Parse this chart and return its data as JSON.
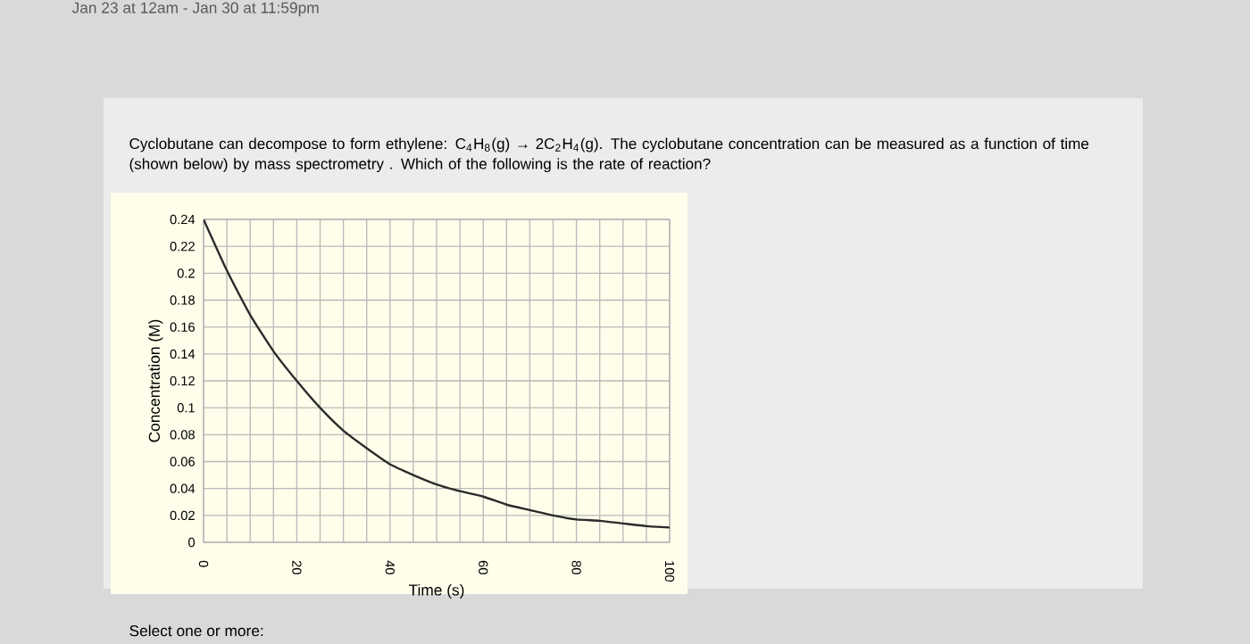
{
  "chart_data": {
    "type": "line",
    "title": "Cyclobutane can decompose to form ethylene: C$_{4}$H$_{8}$(g) → 2C$_{2}$H$_{4}$(g). The cyclobutane concentration can be measured as a function of time (shown below) by mass spectrometry . Which of the following is the rate of reaction?",
    "xlabel": "Time (s)",
    "ylabel": "Concentration (M)",
    "annotations": [
      "Jan 23 at 12am - Jan 30 at 11:59pm",
      "Select one or more:"
    ],
    "x": [
      0,
      5,
      10,
      15,
      20,
      25,
      30,
      35,
      40,
      45,
      50,
      55,
      60,
      65,
      70,
      75,
      80,
      85,
      90,
      95,
      100
    ],
    "series": [
      {
        "color": "#2b2b2b",
        "values": [
          0.24,
          0.202,
          0.169,
          0.142,
          0.12,
          0.1,
          0.083,
          0.07,
          0.058,
          0.05,
          0.043,
          0.038,
          0.034,
          0.028,
          0.024,
          0.02,
          0.017,
          0.016,
          0.014,
          0.012,
          0.011
        ]
      }
    ],
    "xlim": [
      0,
      100
    ],
    "ylim": [
      0,
      0.24
    ],
    "xticks": [
      0,
      20,
      40,
      60,
      80,
      100
    ],
    "yticks": [
      0,
      0.02,
      0.04,
      0.06,
      0.08,
      0.1,
      0.12,
      0.14,
      0.16,
      0.18,
      0.2,
      0.22,
      0.24
    ],
    "grid": true,
    "marker": "none",
    "line_style": "solid"
  }
}
